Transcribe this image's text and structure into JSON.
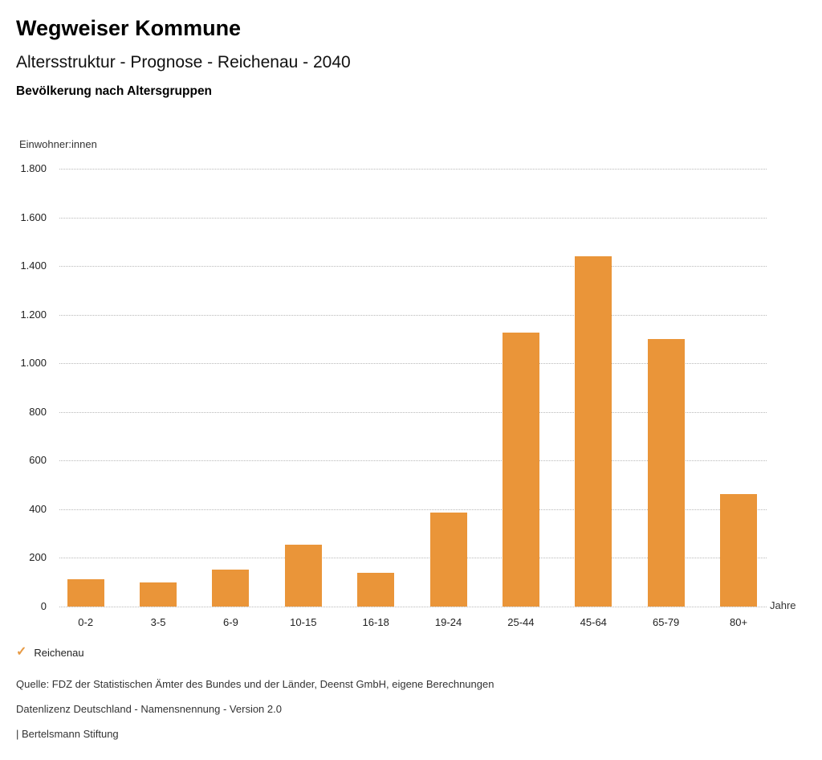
{
  "header": {
    "title": "Wegweiser Kommune",
    "subtitle": "Altersstruktur - Prognose - Reichenau - 2040",
    "heading": "Bevölkerung nach Altersgruppen"
  },
  "chart_data": {
    "type": "bar",
    "title": "Bevölkerung nach Altersgruppen",
    "subtitle": "Altersstruktur - Prognose - Reichenau - 2040",
    "categories": [
      "0-2",
      "3-5",
      "6-9",
      "10-15",
      "16-18",
      "19-24",
      "25-44",
      "45-64",
      "65-79",
      "80+"
    ],
    "series": [
      {
        "name": "Reichenau",
        "values": [
          112,
          100,
          152,
          255,
          140,
          385,
          1125,
          1440,
          1100,
          463
        ]
      }
    ],
    "xlabel": "Jahre",
    "ylabel": "Einwohner:innen",
    "ylim": [
      0,
      1800
    ],
    "ytick_step": 200,
    "ytick_labels": [
      "0",
      "200",
      "400",
      "600",
      "800",
      "1.000",
      "1.200",
      "1.400",
      "1.600",
      "1.800"
    ],
    "grid": true,
    "legend_position": "bottom-left",
    "bar_color": "#EA9539"
  },
  "legend": {
    "check_icon": "✓",
    "check_color": "#E79A45",
    "label": "Reichenau"
  },
  "footer": {
    "source": "Quelle: FDZ der Statistischen Ämter des Bundes und der Länder, Deenst GmbH, eigene Berechnungen",
    "license": "Datenlizenz Deutschland - Namensnennung - Version 2.0",
    "brand": "| Bertelsmann Stiftung"
  },
  "colors": {
    "bar": "#EA9539",
    "grid": "#B9B9B9"
  }
}
